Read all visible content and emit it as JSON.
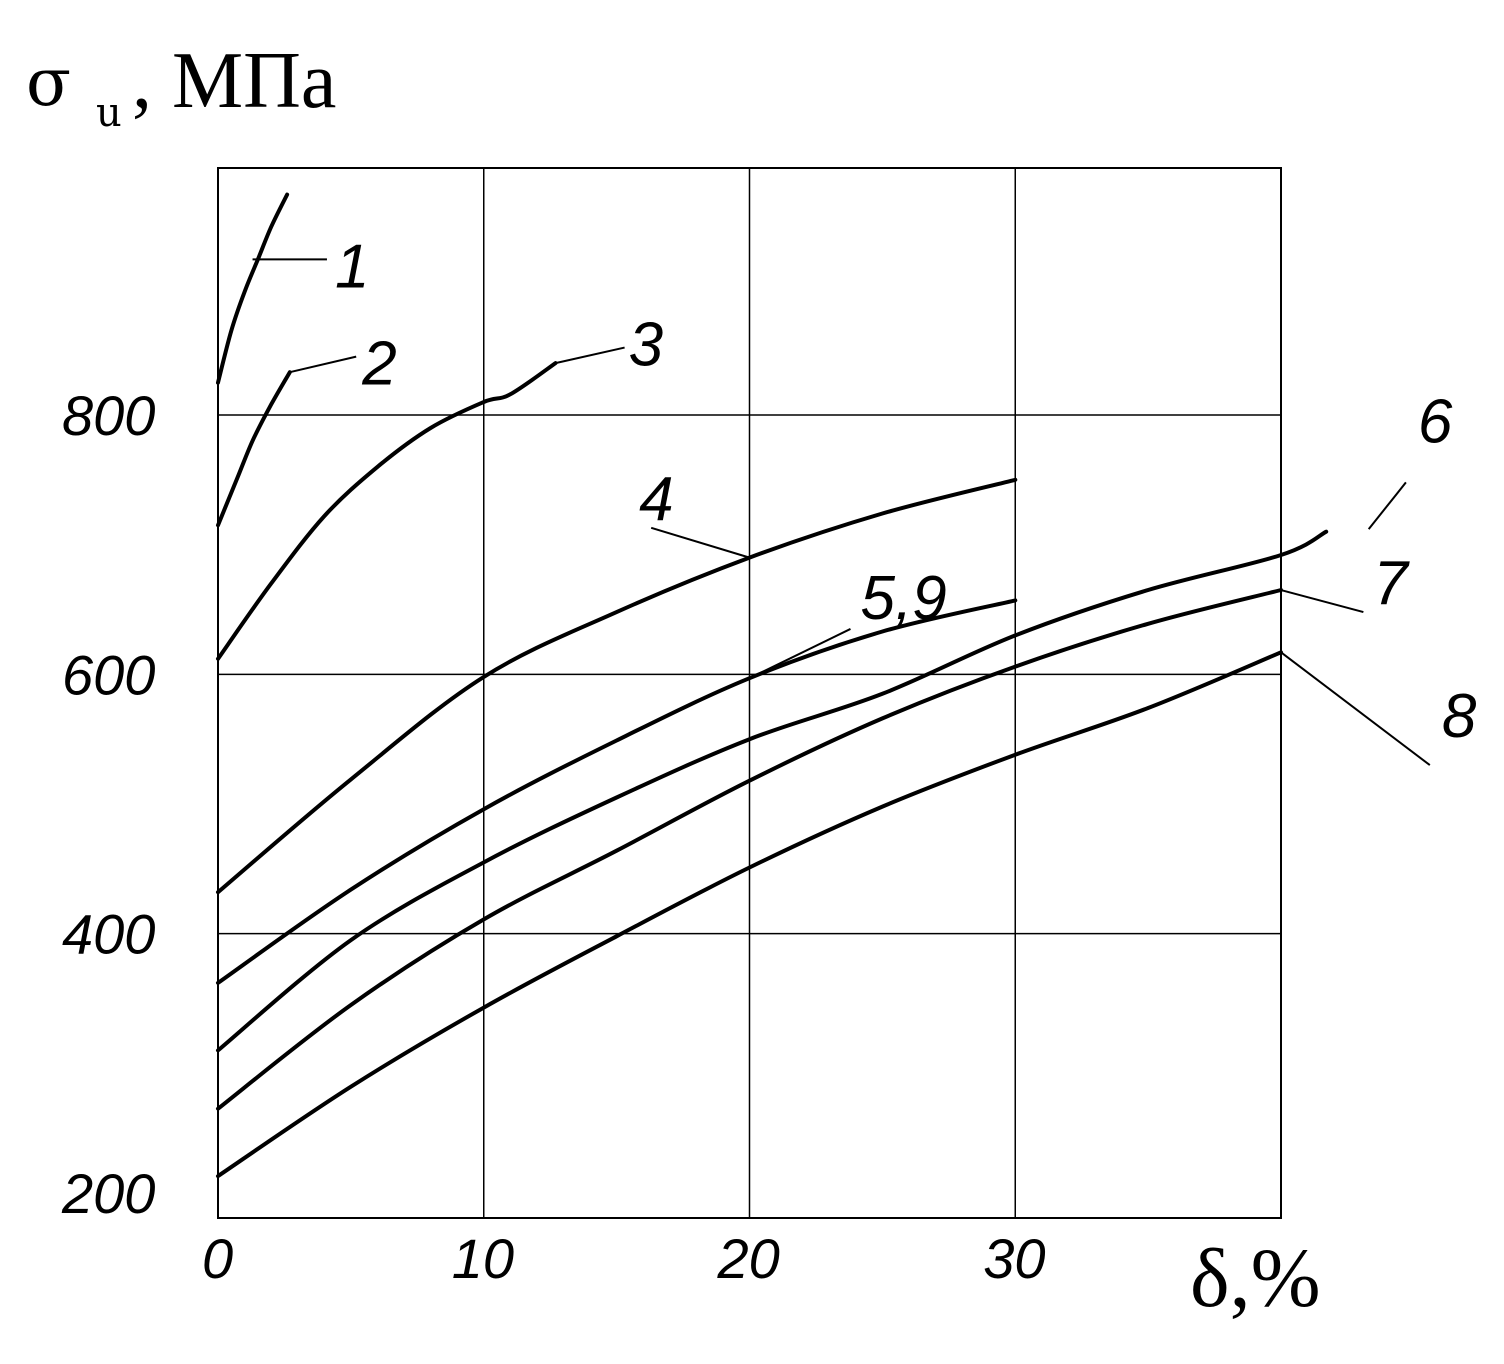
{
  "chart_data": {
    "type": "line",
    "title": "",
    "ylabel": {
      "symbol": "σ",
      "subscript": "u",
      "unit": ", МПа"
    },
    "xlabel": "δ,%",
    "xlim": [
      0,
      40
    ],
    "ylim": [
      160,
      970
    ],
    "xticks": [
      "0",
      "10",
      "20",
      "30"
    ],
    "yticks": [
      "200",
      "400",
      "600",
      "800"
    ],
    "grid": true,
    "series": [
      {
        "name": "1",
        "x": [
          0,
          0.5,
          1,
          1.5,
          2,
          2.6
        ],
        "y": [
          825,
          865,
          895,
          920,
          945,
          970
        ]
      },
      {
        "name": "2",
        "x": [
          0,
          0.7,
          1.3,
          2,
          2.7
        ],
        "y": [
          715,
          750,
          780,
          808,
          833
        ]
      },
      {
        "name": "3",
        "x": [
          0,
          2,
          4,
          6,
          8,
          10,
          11,
          12.7
        ],
        "y": [
          612,
          670,
          722,
          760,
          790,
          810,
          816,
          840
        ]
      },
      {
        "name": "4",
        "x": [
          0,
          5,
          10,
          15,
          20,
          25,
          30
        ],
        "y": [
          432,
          519,
          598,
          648,
          690,
          724,
          750
        ]
      },
      {
        "name": "5,9",
        "x": [
          0,
          5,
          10,
          15,
          20,
          25,
          30
        ],
        "y": [
          362,
          434,
          496,
          549,
          597,
          633,
          657
        ]
      },
      {
        "name": "6",
        "x": [
          0,
          5,
          10,
          15,
          20,
          25,
          30,
          35,
          40,
          41.7
        ],
        "y": [
          310,
          395,
          455,
          505,
          550,
          585,
          630,
          665,
          692,
          710
        ]
      },
      {
        "name": "7",
        "x": [
          0,
          5,
          10,
          15,
          20,
          25,
          30,
          35,
          40
        ],
        "y": [
          265,
          345,
          411,
          464,
          518,
          566,
          606,
          639,
          665
        ]
      },
      {
        "name": "8",
        "x": [
          0,
          5,
          10,
          15,
          20,
          25,
          30,
          35,
          40
        ],
        "y": [
          213,
          282,
          343,
          398,
          451,
          498,
          538,
          574,
          617
        ]
      }
    ],
    "leaders": [
      {
        "name": "1",
        "from": [
          1.3,
          920
        ],
        "to": [
          4.1,
          920
        ],
        "label": "1"
      },
      {
        "name": "2",
        "from": [
          2.7,
          833
        ],
        "to": [
          5.2,
          845
        ],
        "label": "2"
      },
      {
        "name": "3",
        "from": [
          12.7,
          840
        ],
        "to": [
          15.3,
          852
        ],
        "label": "3"
      },
      {
        "name": "4",
        "from": [
          20,
          690
        ],
        "to": [
          16.3,
          713
        ],
        "label": "4"
      },
      {
        "name": "5,9",
        "from": [
          20,
          597
        ],
        "to": [
          23.8,
          635
        ],
        "label": "5,9"
      },
      {
        "name": "6",
        "from": [
          43.3,
          712
        ],
        "to": [
          44.7,
          748
        ],
        "label": "6"
      },
      {
        "name": "7",
        "from": [
          40,
          665
        ],
        "to": [
          43.1,
          648
        ],
        "label": "7"
      },
      {
        "name": "8",
        "from": [
          40,
          617
        ],
        "to": [
          45.6,
          530
        ],
        "label": "8"
      }
    ]
  }
}
